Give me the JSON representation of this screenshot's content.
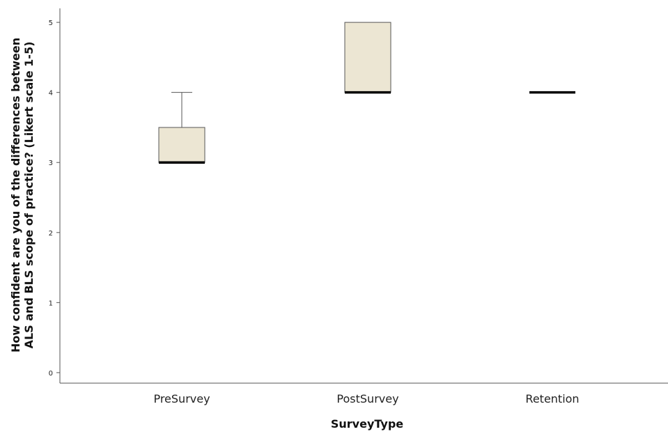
{
  "chart_data": {
    "type": "box",
    "xlabel": "SurveyType",
    "ylabel_lines": [
      "How confident are you of the differences between",
      "ALS and BLS scope of practice? (Likert scale 1-5)"
    ],
    "yticks": [
      0,
      1,
      2,
      3,
      4,
      5
    ],
    "ylim": [
      -0.15,
      5.2
    ],
    "grid": false,
    "box_color": "#ece6d3",
    "categories": [
      "PreSurvey",
      "PostSurvey",
      "Retention"
    ],
    "boxes": [
      {
        "category": "PreSurvey",
        "whisker_low": 3,
        "q1": 3,
        "median": 3,
        "q3": 3.5,
        "whisker_high": 4
      },
      {
        "category": "PostSurvey",
        "whisker_low": 4,
        "q1": 4,
        "median": 4,
        "q3": 5,
        "whisker_high": 5
      },
      {
        "category": "Retention",
        "whisker_low": 4,
        "q1": 4,
        "median": 4,
        "q3": 4,
        "whisker_high": 4
      }
    ]
  }
}
